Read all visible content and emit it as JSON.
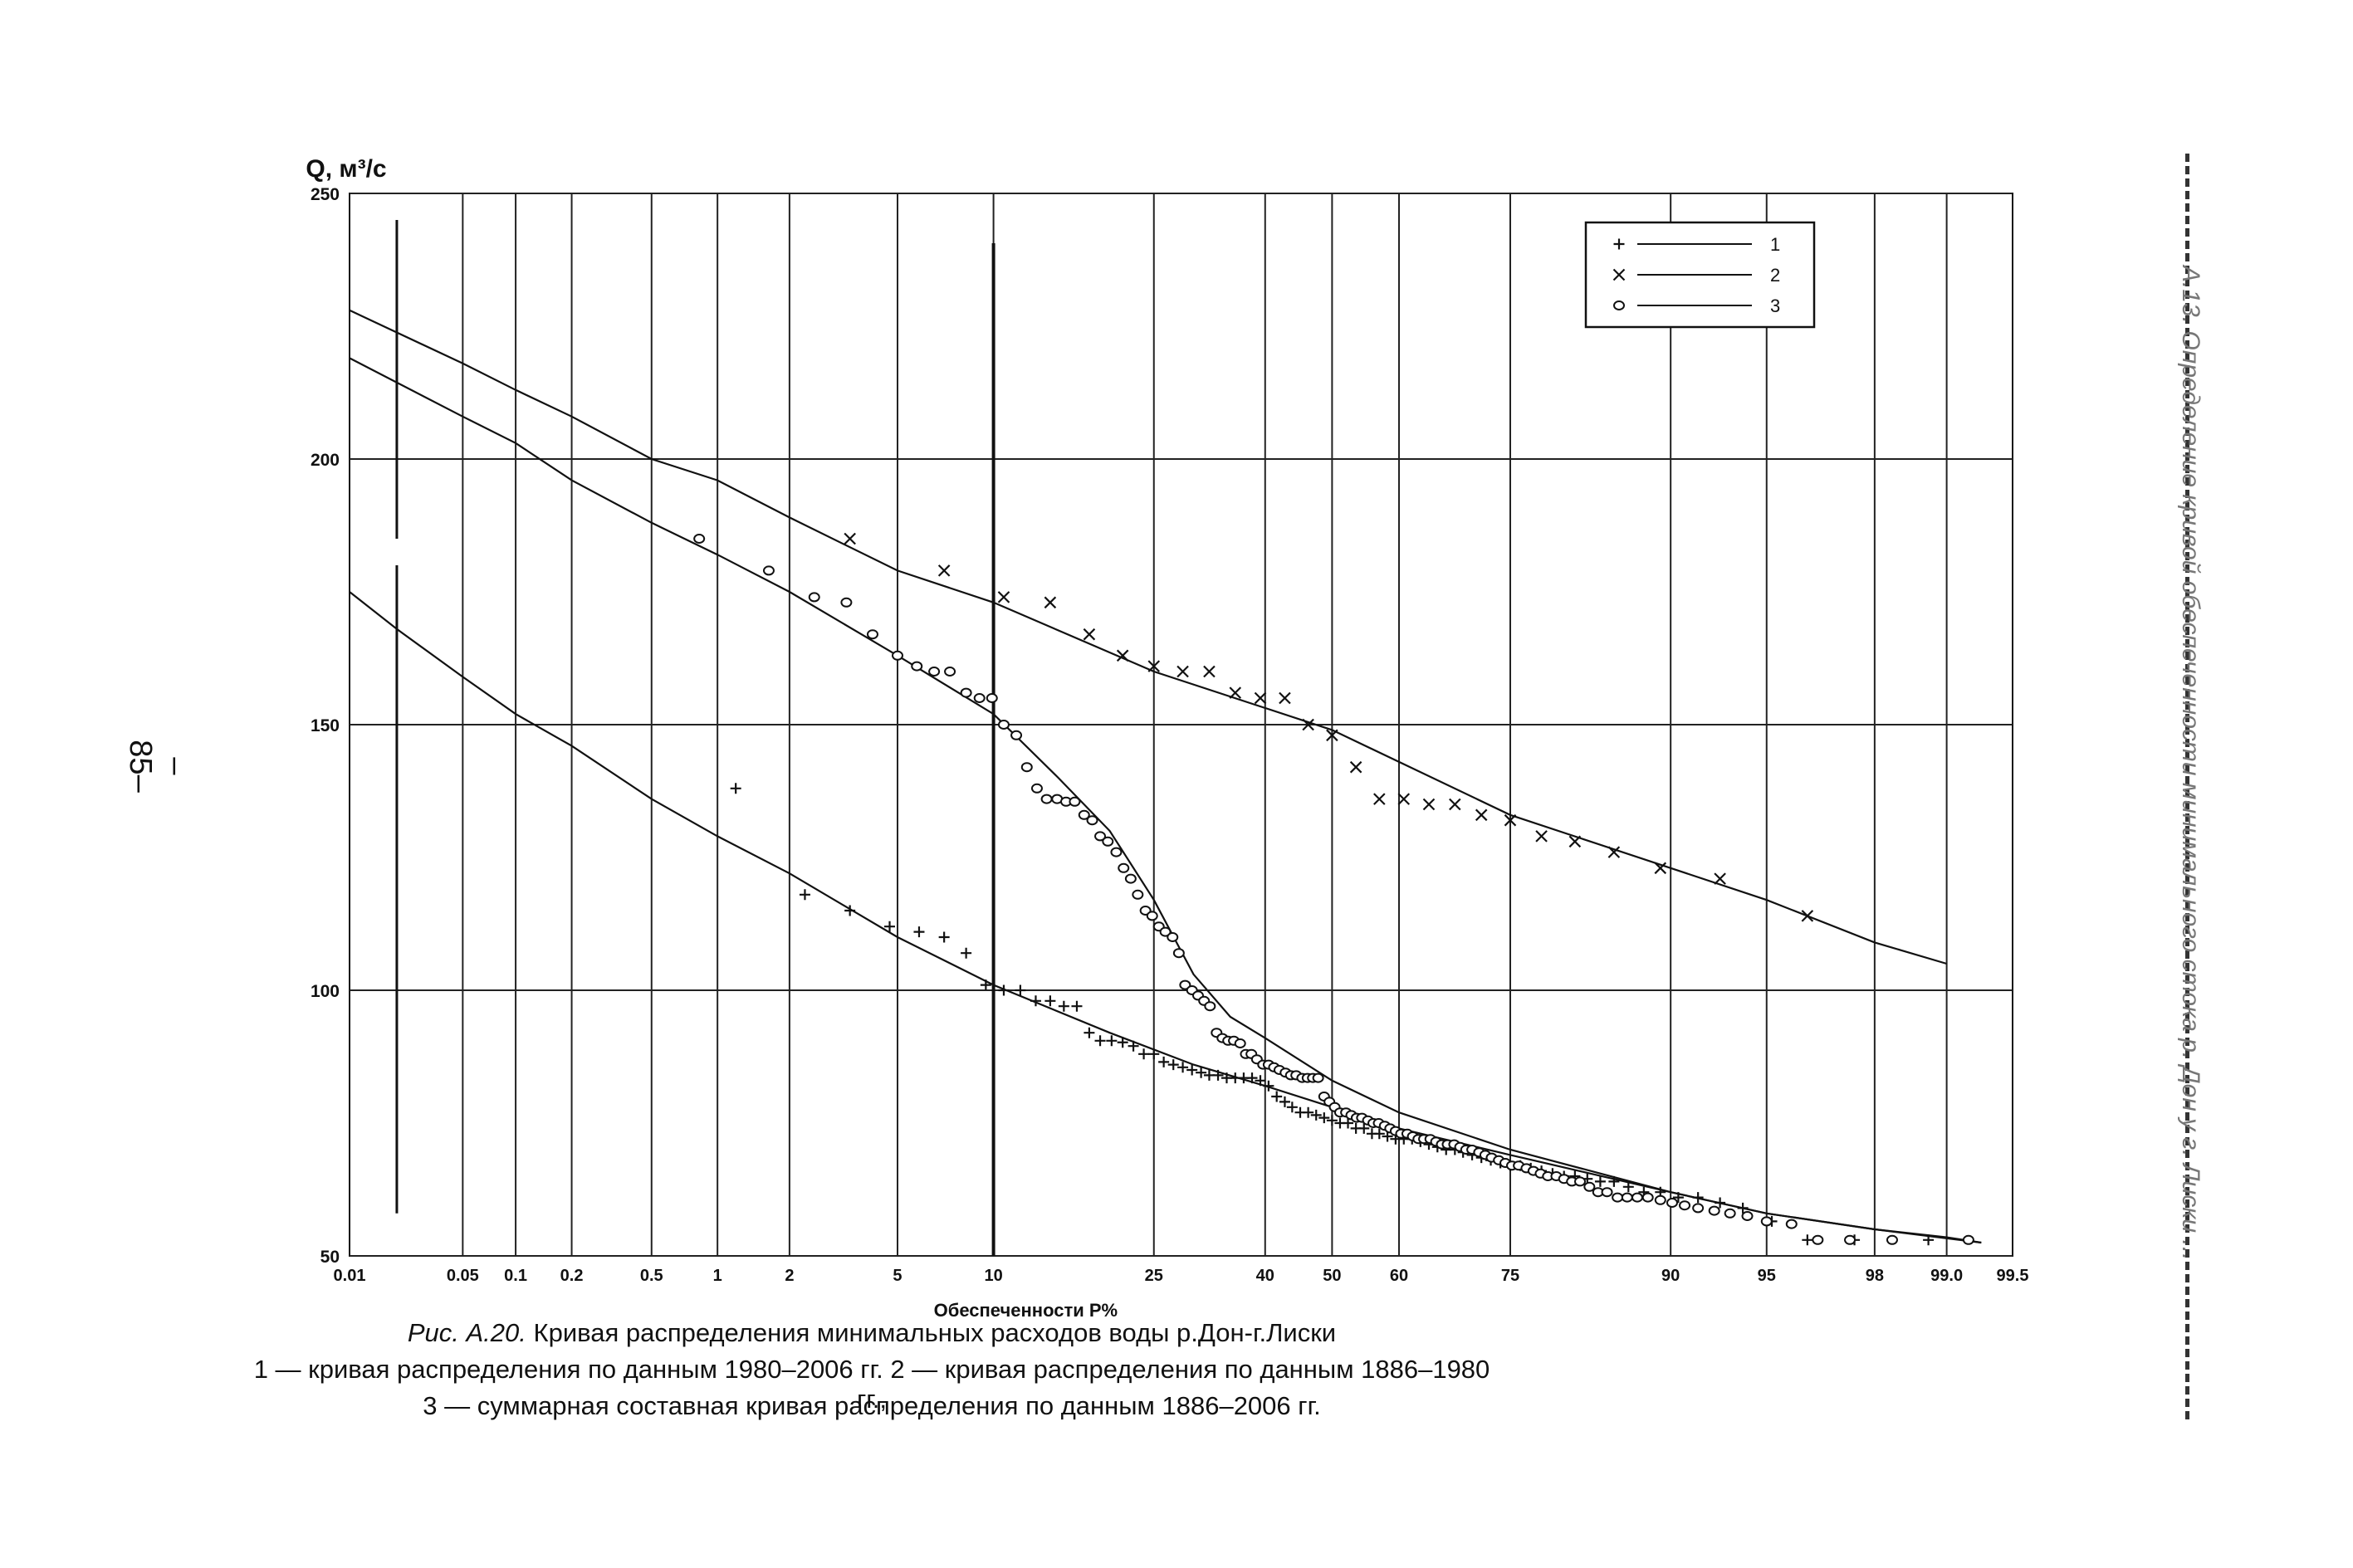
{
  "page_number": "– 85–",
  "side_title": "А.13. Определение кривой обеспеченности минимального стока р. Дон у г. Лиски ...",
  "caption": {
    "fig_label": "Рис. А.20.",
    "title": "Кривая распределения минимальных расходов воды р.Дон-г.Лиски",
    "line2": "1 — кривая распределения по данным 1980–2006 гг. 2 — кривая распределения по данным 1886–1980 гг.,",
    "line3": "3 — суммарная составная кривая распределения по данным 1886–2006 гг."
  },
  "colors": {
    "ink": "#111111",
    "grid": "#222222",
    "accent": "#333333"
  },
  "chart_data": {
    "type": "scatter",
    "ylabel": "Q, м³/с",
    "xlabel": "Обеспеченности P%",
    "x_scale": "probability",
    "ylim": [
      50,
      250
    ],
    "yticks": [
      50,
      100,
      150,
      200,
      250
    ],
    "xticks": [
      0.01,
      0.05,
      0.1,
      0.2,
      0.5,
      1,
      2,
      5,
      10,
      25,
      40,
      50,
      60,
      75,
      90,
      95,
      98,
      99.0,
      99.5
    ],
    "xtick_labels": [
      "0.01",
      "0.05",
      "0.1",
      "0.2",
      "0.5",
      "1",
      "2",
      "5",
      "10",
      "25",
      "40",
      "50",
      "60",
      "75",
      "90",
      "95",
      "98",
      "99.0",
      "99.5"
    ],
    "grid": true,
    "legend_position": "top-right",
    "series": [
      {
        "name": "1",
        "marker": "plus",
        "points": [
          [
            1.2,
            138
          ],
          [
            2.3,
            118
          ],
          [
            3.4,
            115
          ],
          [
            4.7,
            112
          ],
          [
            5.9,
            111
          ],
          [
            7.1,
            110
          ],
          [
            8.3,
            107
          ],
          [
            9.5,
            101
          ],
          [
            10.7,
            100
          ],
          [
            11.9,
            100
          ],
          [
            13.1,
            98
          ],
          [
            14.3,
            98
          ],
          [
            15.5,
            97
          ],
          [
            16.7,
            97
          ],
          [
            17.9,
            92
          ],
          [
            19.0,
            90.5
          ],
          [
            20.2,
            90.5
          ],
          [
            21.4,
            90.2
          ],
          [
            22.6,
            89.5
          ],
          [
            23.8,
            88
          ],
          [
            25.0,
            88
          ],
          [
            26.2,
            86.5
          ],
          [
            27.4,
            86
          ],
          [
            28.6,
            85.5
          ],
          [
            29.8,
            85
          ],
          [
            31.0,
            84.5
          ],
          [
            32.1,
            84
          ],
          [
            33.3,
            84
          ],
          [
            34.5,
            83.5
          ],
          [
            35.7,
            83.5
          ],
          [
            36.9,
            83.5
          ],
          [
            38.1,
            83.5
          ],
          [
            39.3,
            83
          ],
          [
            40.5,
            82
          ],
          [
            41.7,
            80
          ],
          [
            42.9,
            79
          ],
          [
            44.0,
            78
          ],
          [
            45.2,
            77
          ],
          [
            46.4,
            77
          ],
          [
            47.6,
            76.5
          ],
          [
            48.8,
            76
          ],
          [
            50.0,
            75.5
          ],
          [
            51.2,
            75
          ],
          [
            52.4,
            75
          ],
          [
            53.6,
            74
          ],
          [
            54.8,
            74
          ],
          [
            56.0,
            73
          ],
          [
            57.1,
            73
          ],
          [
            58.3,
            72.5
          ],
          [
            59.5,
            72
          ],
          [
            60.7,
            72
          ],
          [
            61.9,
            72
          ],
          [
            63.1,
            71.5
          ],
          [
            64.3,
            71
          ],
          [
            65.5,
            70.5
          ],
          [
            66.7,
            70
          ],
          [
            67.9,
            70
          ],
          [
            69.0,
            69.5
          ],
          [
            70.2,
            69
          ],
          [
            71.4,
            68.5
          ],
          [
            72.6,
            68
          ],
          [
            73.8,
            67.5
          ],
          [
            75.0,
            67
          ],
          [
            76.2,
            67
          ],
          [
            77.4,
            66.5
          ],
          [
            78.6,
            66
          ],
          [
            79.8,
            65.5
          ],
          [
            81.0,
            65
          ],
          [
            82.1,
            65
          ],
          [
            83.3,
            64.5
          ],
          [
            84.5,
            64
          ],
          [
            85.7,
            64
          ],
          [
            86.9,
            63
          ],
          [
            88.1,
            62
          ],
          [
            89.3,
            62
          ],
          [
            90.5,
            61
          ],
          [
            91.7,
            61
          ],
          [
            92.9,
            60
          ],
          [
            94.0,
            59
          ],
          [
            95.2,
            56.5
          ],
          [
            96.4,
            53
          ],
          [
            97.6,
            53
          ],
          [
            98.8,
            53
          ]
        ]
      },
      {
        "name": "2",
        "marker": "cross",
        "points": [
          [
            3.4,
            185
          ],
          [
            7.1,
            179
          ],
          [
            10.7,
            174
          ],
          [
            14.3,
            173
          ],
          [
            17.9,
            167
          ],
          [
            21.4,
            163
          ],
          [
            25.0,
            161
          ],
          [
            28.6,
            160
          ],
          [
            32.1,
            160
          ],
          [
            35.7,
            156
          ],
          [
            39.3,
            155
          ],
          [
            42.9,
            155
          ],
          [
            46.4,
            150
          ],
          [
            50.0,
            148
          ],
          [
            53.6,
            142
          ],
          [
            57.1,
            136
          ],
          [
            60.7,
            136
          ],
          [
            64.3,
            135
          ],
          [
            67.9,
            135
          ],
          [
            71.4,
            133
          ],
          [
            75.0,
            132
          ],
          [
            78.6,
            129
          ],
          [
            82.1,
            128
          ],
          [
            85.7,
            126
          ],
          [
            89.3,
            123
          ],
          [
            92.9,
            121
          ],
          [
            96.4,
            114
          ]
        ]
      },
      {
        "name": "3",
        "marker": "circle",
        "points": [
          [
            0.83,
            185
          ],
          [
            1.65,
            179
          ],
          [
            2.5,
            174
          ],
          [
            3.3,
            173
          ],
          [
            4.1,
            167
          ],
          [
            5.0,
            163
          ],
          [
            5.8,
            161
          ],
          [
            6.6,
            160
          ],
          [
            7.4,
            160
          ],
          [
            8.3,
            156
          ],
          [
            9.1,
            155
          ],
          [
            9.9,
            155
          ],
          [
            10.7,
            150
          ],
          [
            11.6,
            148
          ],
          [
            12.4,
            142
          ],
          [
            13.2,
            138
          ],
          [
            14.0,
            136
          ],
          [
            14.9,
            136
          ],
          [
            15.7,
            135.5
          ],
          [
            16.5,
            135.5
          ],
          [
            17.4,
            133
          ],
          [
            18.2,
            132
          ],
          [
            19.0,
            129
          ],
          [
            19.8,
            128
          ],
          [
            20.7,
            126
          ],
          [
            21.5,
            123
          ],
          [
            22.3,
            121
          ],
          [
            23.1,
            118
          ],
          [
            24.0,
            115
          ],
          [
            24.8,
            114
          ],
          [
            25.6,
            112
          ],
          [
            26.4,
            111
          ],
          [
            27.3,
            110
          ],
          [
            28.1,
            107
          ],
          [
            28.9,
            101
          ],
          [
            29.8,
            100
          ],
          [
            30.6,
            99
          ],
          [
            31.4,
            98
          ],
          [
            32.2,
            97
          ],
          [
            33.1,
            92
          ],
          [
            33.9,
            91
          ],
          [
            34.7,
            90.5
          ],
          [
            35.5,
            90.5
          ],
          [
            36.4,
            90
          ],
          [
            37.2,
            88
          ],
          [
            38.0,
            88
          ],
          [
            38.8,
            87
          ],
          [
            39.7,
            86
          ],
          [
            40.5,
            86
          ],
          [
            41.3,
            85.5
          ],
          [
            42.1,
            85
          ],
          [
            43.0,
            84.5
          ],
          [
            43.8,
            84
          ],
          [
            44.6,
            84
          ],
          [
            45.5,
            83.5
          ],
          [
            46.3,
            83.5
          ],
          [
            47.1,
            83.5
          ],
          [
            47.9,
            83.5
          ],
          [
            48.8,
            80
          ],
          [
            49.6,
            79
          ],
          [
            50.4,
            78
          ],
          [
            51.2,
            77
          ],
          [
            52.1,
            77
          ],
          [
            52.9,
            76.5
          ],
          [
            53.7,
            76
          ],
          [
            54.5,
            76
          ],
          [
            55.4,
            75.5
          ],
          [
            56.2,
            75
          ],
          [
            57.0,
            75
          ],
          [
            57.9,
            74.5
          ],
          [
            58.7,
            74
          ],
          [
            59.5,
            73.5
          ],
          [
            60.3,
            73
          ],
          [
            61.2,
            73
          ],
          [
            62.0,
            72.5
          ],
          [
            62.8,
            72
          ],
          [
            63.6,
            72
          ],
          [
            64.5,
            72
          ],
          [
            65.3,
            71.5
          ],
          [
            66.1,
            71
          ],
          [
            66.9,
            71
          ],
          [
            67.8,
            71
          ],
          [
            68.6,
            70.5
          ],
          [
            69.4,
            70
          ],
          [
            70.2,
            70
          ],
          [
            71.1,
            69.5
          ],
          [
            71.9,
            69
          ],
          [
            72.7,
            68.5
          ],
          [
            73.6,
            68
          ],
          [
            74.4,
            67.5
          ],
          [
            75.2,
            67
          ],
          [
            76.0,
            67
          ],
          [
            76.9,
            66.5
          ],
          [
            77.7,
            66
          ],
          [
            78.5,
            65.5
          ],
          [
            79.3,
            65
          ],
          [
            80.2,
            65
          ],
          [
            81.0,
            64.5
          ],
          [
            81.8,
            64
          ],
          [
            82.6,
            64
          ],
          [
            83.5,
            63
          ],
          [
            84.3,
            62
          ],
          [
            85.1,
            62
          ],
          [
            86.0,
            61
          ],
          [
            86.8,
            61
          ],
          [
            87.6,
            61
          ],
          [
            88.4,
            61
          ],
          [
            89.3,
            60.5
          ],
          [
            90.1,
            60
          ],
          [
            90.9,
            59.5
          ],
          [
            91.7,
            59
          ],
          [
            92.6,
            58.5
          ],
          [
            93.4,
            58
          ],
          [
            94.2,
            57.5
          ],
          [
            95.0,
            56.5
          ],
          [
            95.9,
            56
          ],
          [
            96.7,
            53
          ],
          [
            97.5,
            53
          ],
          [
            98.3,
            53
          ],
          [
            99.2,
            53
          ]
        ]
      }
    ],
    "curves": [
      {
        "name": "1",
        "points": [
          [
            0.01,
            175
          ],
          [
            0.02,
            168
          ],
          [
            0.05,
            159
          ],
          [
            0.1,
            152
          ],
          [
            0.2,
            146
          ],
          [
            0.5,
            136
          ],
          [
            1,
            129
          ],
          [
            2,
            122
          ],
          [
            5,
            110
          ],
          [
            10,
            101
          ],
          [
            20,
            92
          ],
          [
            30,
            86
          ],
          [
            40,
            82
          ],
          [
            50,
            78
          ],
          [
            60,
            74
          ],
          [
            75,
            69
          ],
          [
            90,
            62
          ],
          [
            95,
            58
          ],
          [
            98,
            55
          ],
          [
            99,
            53.5
          ],
          [
            99.3,
            52.5
          ]
        ]
      },
      {
        "name": "2",
        "points": [
          [
            0.01,
            228
          ],
          [
            0.05,
            218
          ],
          [
            0.1,
            213
          ],
          [
            0.2,
            208
          ],
          [
            0.5,
            200
          ],
          [
            1,
            196
          ],
          [
            2,
            189
          ],
          [
            5,
            179
          ],
          [
            10,
            173
          ],
          [
            25,
            160
          ],
          [
            50,
            149
          ],
          [
            75,
            133
          ],
          [
            90,
            123
          ],
          [
            95,
            117
          ],
          [
            98,
            109
          ],
          [
            99,
            105
          ]
        ]
      },
      {
        "name": "3",
        "points": [
          [
            0.01,
            219
          ],
          [
            0.05,
            208
          ],
          [
            0.1,
            203
          ],
          [
            0.2,
            196
          ],
          [
            0.5,
            188
          ],
          [
            1,
            182
          ],
          [
            2,
            175
          ],
          [
            5,
            163
          ],
          [
            10,
            152
          ],
          [
            15,
            140
          ],
          [
            20,
            130
          ],
          [
            25,
            117
          ],
          [
            30,
            103
          ],
          [
            35,
            95
          ],
          [
            40,
            91
          ],
          [
            50,
            83
          ],
          [
            60,
            77
          ],
          [
            75,
            70
          ],
          [
            90,
            62
          ],
          [
            95,
            58
          ],
          [
            98,
            55
          ],
          [
            99.3,
            52.5
          ]
        ]
      }
    ],
    "legend": [
      {
        "label": "1",
        "marker": "plus"
      },
      {
        "label": "2",
        "marker": "cross"
      },
      {
        "label": "3",
        "marker": "circle"
      }
    ]
  }
}
